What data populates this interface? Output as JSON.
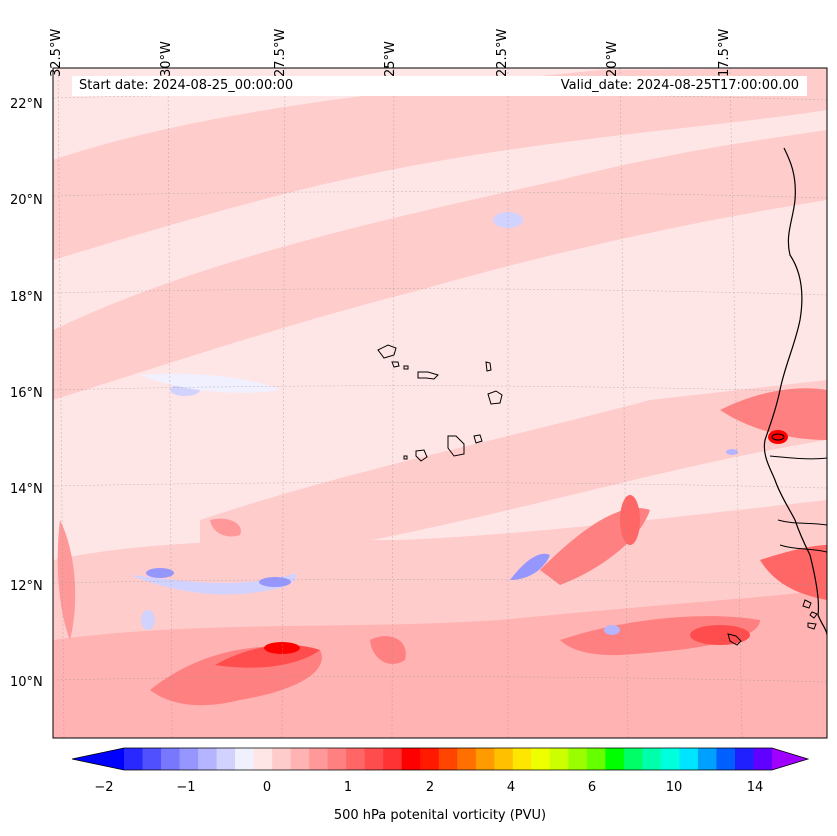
{
  "map": {
    "start_label": "Start date: 2024-08-25_00:00:00",
    "valid_label": "Valid_date: 2024-08-25T17:00:00.00",
    "lon_labels": [
      "32.5°W",
      "30°W",
      "27.5°W",
      "25°W",
      "22.5°W",
      "20°W",
      "17.5°W"
    ],
    "lat_labels": [
      "22°N",
      "20°N",
      "18°N",
      "16°N",
      "14°N",
      "12°N",
      "10°N"
    ],
    "lon_range": [
      -33.0,
      -15.0
    ],
    "lat_range": [
      8.9,
      22.8
    ],
    "field": "500 hPa potential vorticity",
    "gridlines": true,
    "coastline_color": "#000000"
  },
  "colorbar": {
    "label": "500 hPa potenital vorticity (PVU)",
    "ticks": [
      "−2",
      "−1",
      "0",
      "1",
      "2",
      "4",
      "6",
      "10",
      "14"
    ],
    "extend": "both",
    "colors": [
      "#0000ff",
      "#2828ff",
      "#5050ff",
      "#7878ff",
      "#9696ff",
      "#b4b4ff",
      "#d2d2ff",
      "#f0f0ff",
      "#ffe6e6",
      "#ffcccc",
      "#ffb3b3",
      "#ff9999",
      "#ff8080",
      "#ff6666",
      "#ff4d4d",
      "#ff3333",
      "#ff0000",
      "#ff1a00",
      "#ff4500",
      "#ff7000",
      "#ff9a00",
      "#ffc000",
      "#ffe600",
      "#eeff00",
      "#ccff00",
      "#99ff00",
      "#66ff00",
      "#00ff00",
      "#00ff66",
      "#00ffaa",
      "#00ffdd",
      "#00e5ff",
      "#00a0ff",
      "#0060ff",
      "#2020ff",
      "#6000ff",
      "#a000ff"
    ]
  }
}
